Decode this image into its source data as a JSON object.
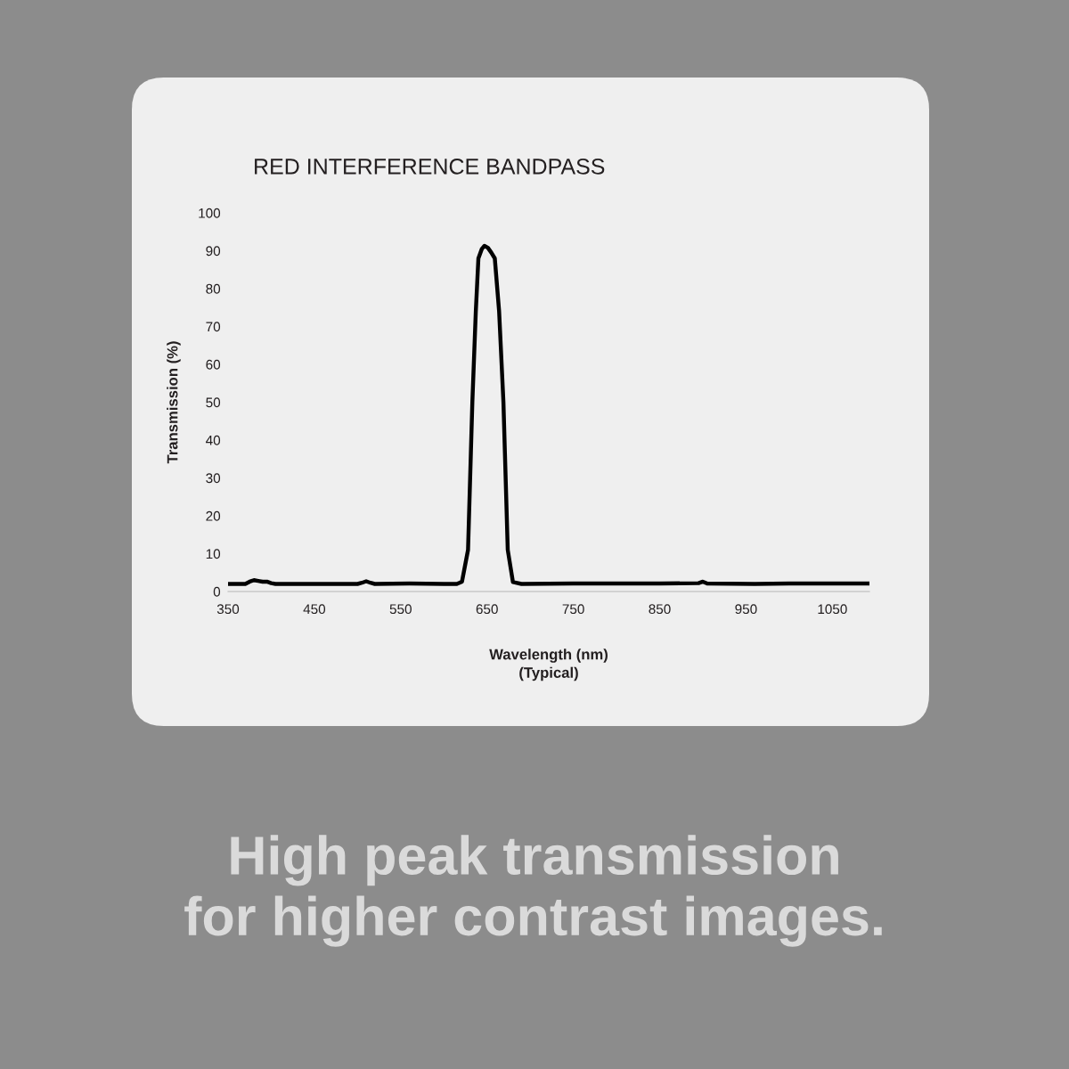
{
  "chart_data": {
    "type": "line",
    "title": "RED INTERFERENCE BANDPASS",
    "xlabel": "Wavelength (nm)\n(Typical)",
    "ylabel": "Transmission (%)",
    "annotations": [
      "High peak transmission\nfor higher contrast images."
    ],
    "xlim": [
      350,
      1093
    ],
    "ylim": [
      0,
      100
    ],
    "xticks": [
      350,
      450,
      550,
      650,
      750,
      850,
      950,
      1050
    ],
    "yticks": [
      0,
      10,
      20,
      30,
      40,
      50,
      60,
      70,
      80,
      90,
      100
    ],
    "grid": false,
    "legend": false,
    "marker": "none",
    "line_style": "solid",
    "series": [
      {
        "color": "#000000",
        "x": [
          350,
          370,
          375,
          380,
          385,
          390,
          395,
          400,
          405,
          420,
          500,
          505,
          510,
          515,
          520,
          560,
          600,
          615,
          621,
          628,
          633,
          637,
          640,
          644,
          647,
          651,
          655,
          659,
          664,
          669,
          674,
          680,
          690,
          750,
          800,
          850,
          895,
          900,
          905,
          960,
          1000,
          1093
        ],
        "values": [
          2,
          2,
          2.6,
          3,
          2.8,
          2.6,
          2.6,
          2.2,
          2,
          2,
          2,
          2.3,
          2.7,
          2.3,
          2,
          2.1,
          2,
          2,
          2.6,
          11,
          50,
          74,
          88,
          90.5,
          91.3,
          90.8,
          89.5,
          88,
          74,
          50,
          11,
          2.5,
          2,
          2.1,
          2.1,
          2.1,
          2.2,
          2.6,
          2.1,
          2,
          2.1,
          2.1
        ]
      }
    ]
  }
}
